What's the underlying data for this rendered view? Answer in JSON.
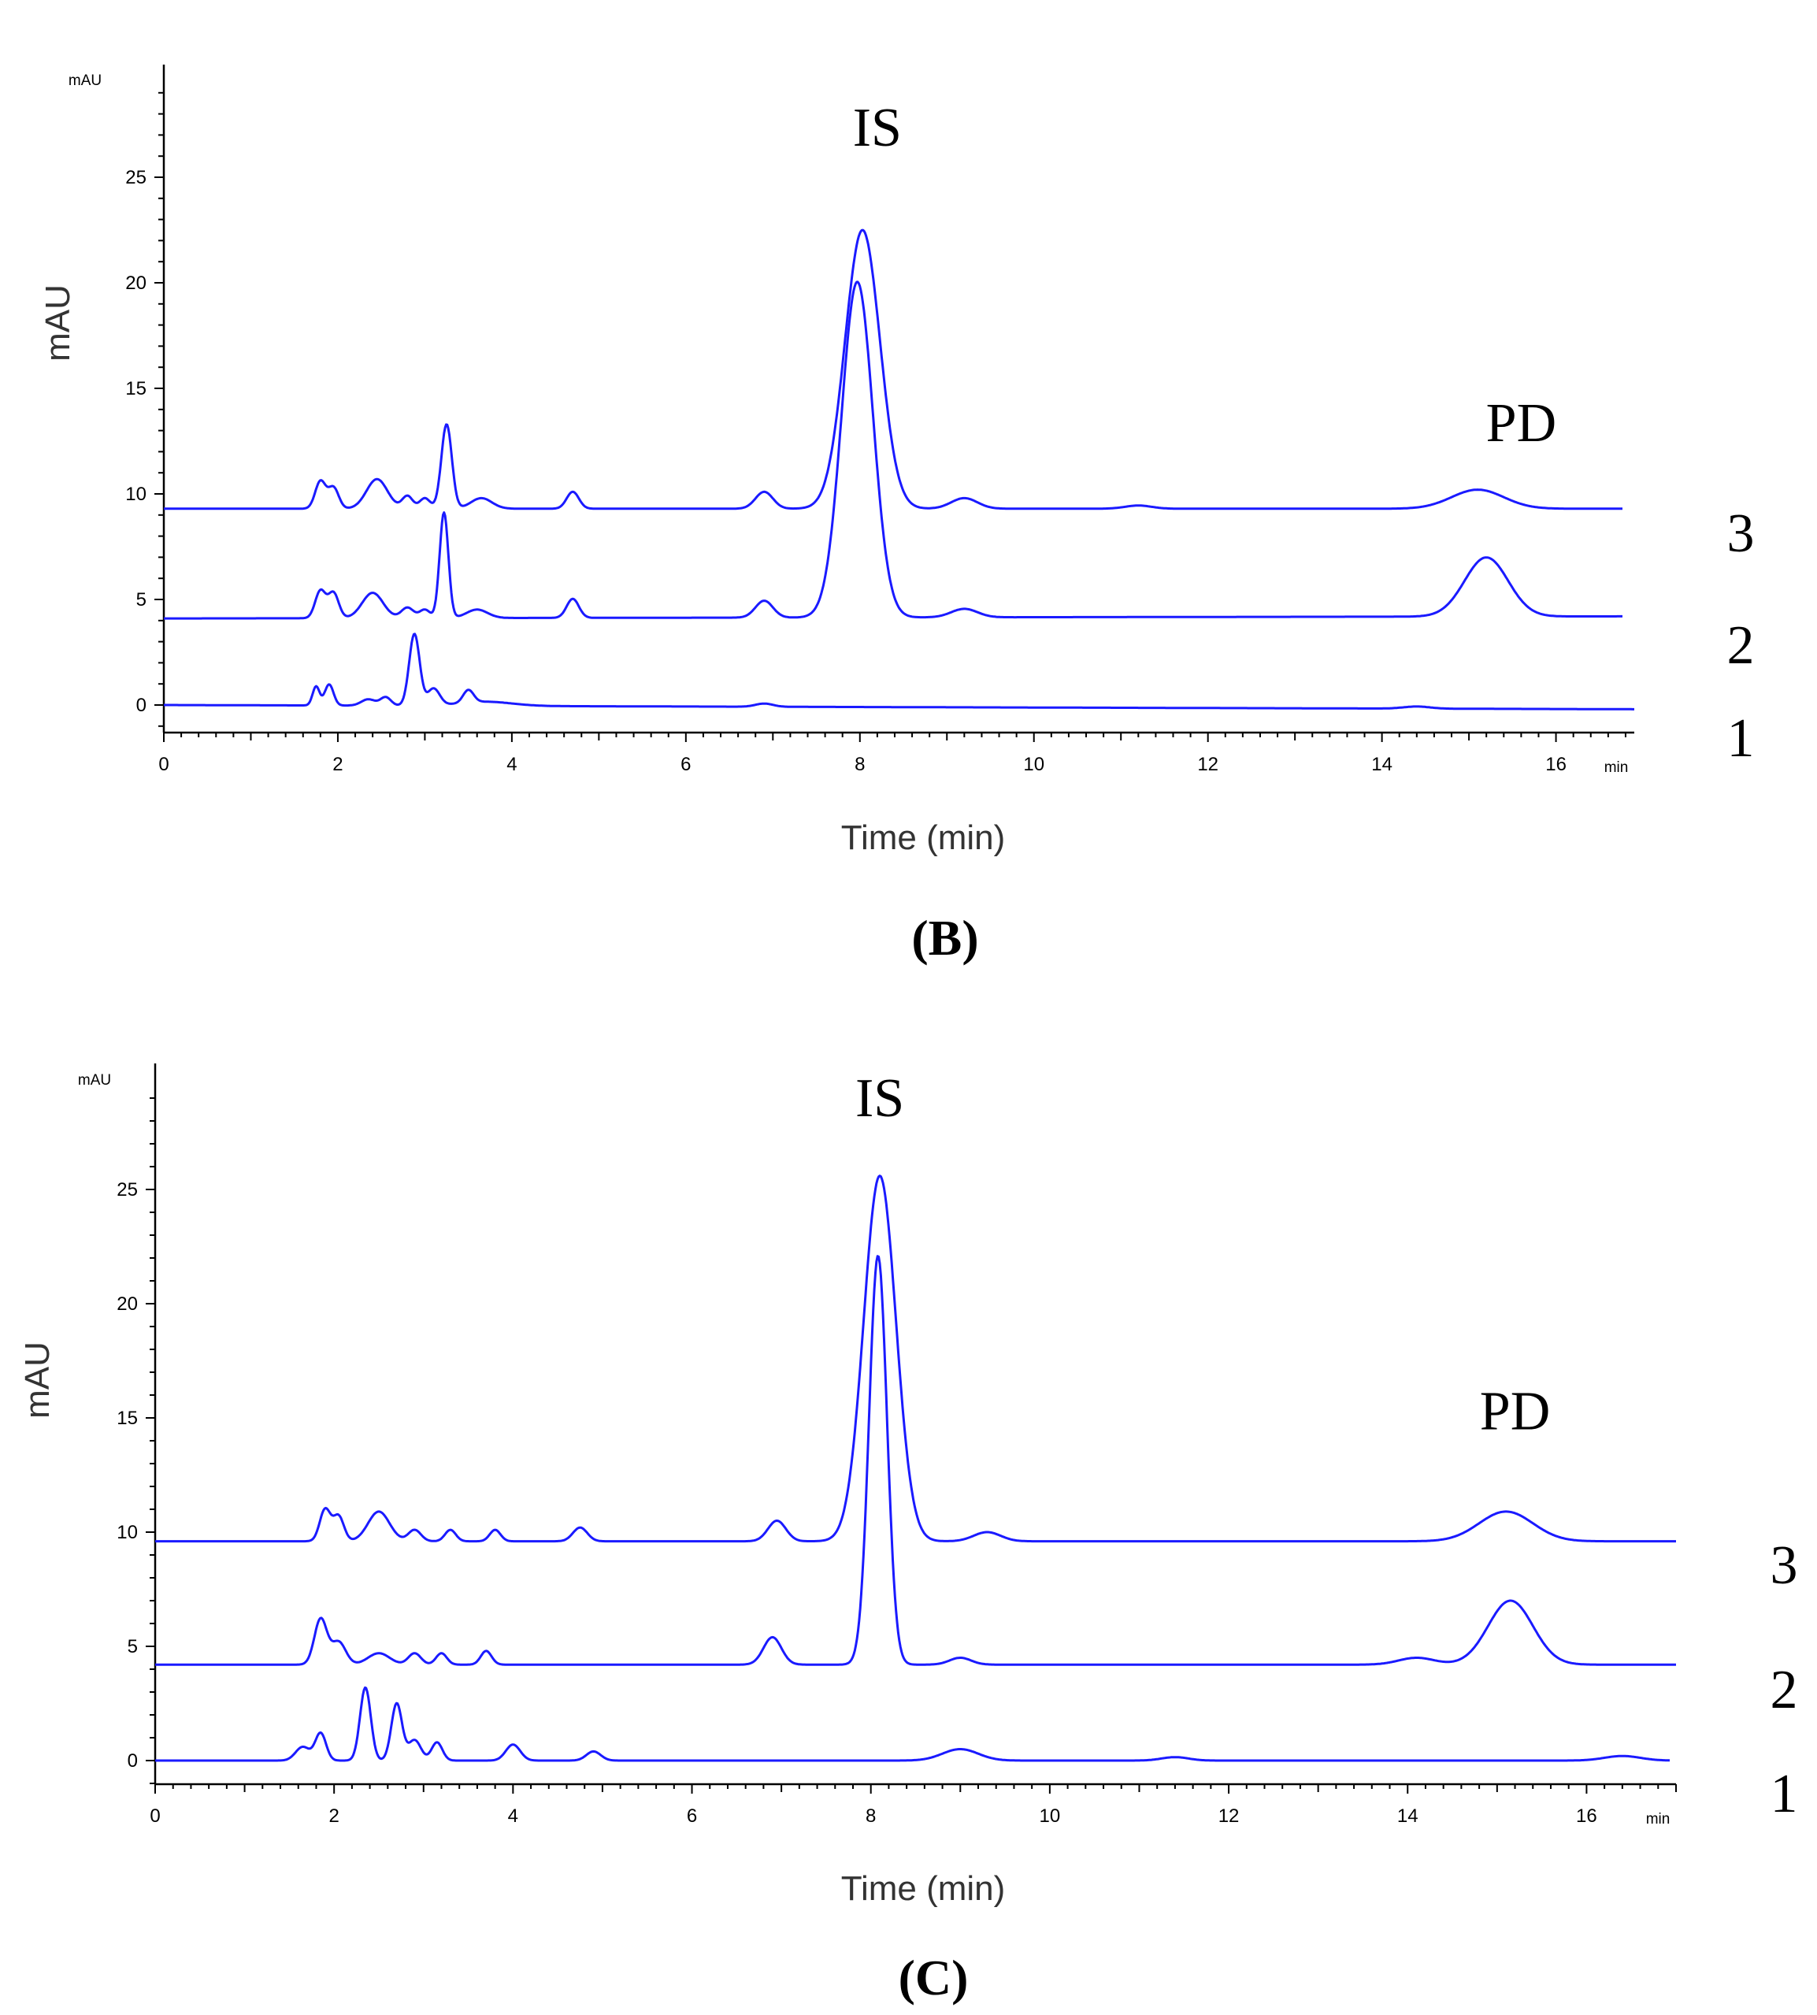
{
  "chart_data": [
    {
      "type": "line",
      "panel_label": "(B)",
      "title": "",
      "xlabel": "Time (min)",
      "ylabel": "mAU",
      "y_unit_label": "mAU",
      "x_unit_label": "min",
      "xlim": [
        0,
        16.9
      ],
      "ylim": [
        -1,
        30
      ],
      "x_ticks": [
        "0",
        "2",
        "4",
        "6",
        "8",
        "10",
        "12",
        "14",
        "16"
      ],
      "y_ticks": [
        "0",
        "5",
        "10",
        "15",
        "20",
        "25"
      ],
      "grid": false,
      "annotations": [
        {
          "text": "IS",
          "x": 8.2,
          "y": 26.5
        },
        {
          "text": "PD",
          "x": 15.6,
          "y": 12.5
        }
      ],
      "series": [
        {
          "name": "1",
          "baseline": 0.0,
          "end_baseline": -0.2,
          "peaks": [
            [
              1.75,
              0.9,
              0.04
            ],
            [
              1.9,
              1.0,
              0.05
            ],
            [
              2.35,
              0.3,
              0.08
            ],
            [
              2.55,
              0.4,
              0.06
            ],
            [
              2.88,
              3.4,
              0.06
            ],
            [
              3.1,
              0.8,
              0.07
            ],
            [
              3.5,
              0.6,
              0.06
            ],
            [
              3.7,
              0.2,
              0.3
            ],
            [
              6.9,
              0.15,
              0.1
            ],
            [
              14.4,
              0.1,
              0.15
            ]
          ]
        },
        {
          "name": "2",
          "baseline": 4.1,
          "end_baseline": 4.2,
          "peaks": [
            [
              1.8,
              1.3,
              0.06
            ],
            [
              1.95,
              1.2,
              0.06
            ],
            [
              2.4,
              1.2,
              0.12
            ],
            [
              2.8,
              0.5,
              0.07
            ],
            [
              3.0,
              0.4,
              0.06
            ],
            [
              3.22,
              5.0,
              0.05
            ],
            [
              3.6,
              0.4,
              0.12
            ],
            [
              4.7,
              0.9,
              0.07
            ],
            [
              6.9,
              0.8,
              0.1
            ],
            [
              7.97,
              15.9,
              0.18
            ],
            [
              9.2,
              0.4,
              0.15
            ],
            [
              15.2,
              2.8,
              0.25
            ]
          ]
        },
        {
          "name": "3",
          "baseline": 9.3,
          "end_baseline": 9.3,
          "peaks": [
            [
              1.8,
              1.3,
              0.06
            ],
            [
              1.95,
              1.0,
              0.06
            ],
            [
              2.45,
              1.4,
              0.12
            ],
            [
              2.8,
              0.6,
              0.06
            ],
            [
              3.0,
              0.5,
              0.06
            ],
            [
              3.25,
              4.0,
              0.06
            ],
            [
              3.65,
              0.5,
              0.12
            ],
            [
              4.7,
              0.8,
              0.07
            ],
            [
              6.9,
              0.8,
              0.1
            ],
            [
              8.03,
              13.2,
              0.2
            ],
            [
              9.2,
              0.5,
              0.15
            ],
            [
              11.2,
              0.15,
              0.15
            ],
            [
              15.1,
              0.9,
              0.3
            ]
          ]
        }
      ]
    },
    {
      "type": "line",
      "panel_label": "(C)",
      "title": "",
      "xlabel": "Time (min)",
      "ylabel": "mAU",
      "y_unit_label": "mAU",
      "x_unit_label": "min",
      "xlim": [
        0,
        17
      ],
      "ylim": [
        -1,
        30
      ],
      "x_ticks": [
        "0",
        "2",
        "4",
        "6",
        "8",
        "10",
        "12",
        "14",
        "16"
      ],
      "y_ticks": [
        "0",
        "5",
        "10",
        "15",
        "20",
        "25"
      ],
      "grid": false,
      "annotations": [
        {
          "text": "IS",
          "x": 8.1,
          "y": 28.2
        },
        {
          "text": "PD",
          "x": 15.2,
          "y": 14.5
        }
      ],
      "series": [
        {
          "name": "1",
          "baseline": 0.0,
          "end_baseline": 0.0,
          "peaks": [
            [
              1.65,
              0.6,
              0.08
            ],
            [
              1.85,
              1.2,
              0.06
            ],
            [
              2.35,
              3.2,
              0.06
            ],
            [
              2.7,
              2.5,
              0.06
            ],
            [
              2.9,
              0.9,
              0.07
            ],
            [
              3.15,
              0.8,
              0.06
            ],
            [
              4.0,
              0.7,
              0.08
            ],
            [
              4.9,
              0.4,
              0.08
            ],
            [
              9.0,
              0.5,
              0.2
            ],
            [
              11.4,
              0.15,
              0.15
            ],
            [
              16.4,
              0.2,
              0.2
            ]
          ]
        },
        {
          "name": "2",
          "baseline": 4.2,
          "end_baseline": 4.2,
          "peaks": [
            [
              1.85,
              2.0,
              0.07
            ],
            [
              2.05,
              1.0,
              0.08
            ],
            [
              2.5,
              0.5,
              0.12
            ],
            [
              2.9,
              0.5,
              0.07
            ],
            [
              3.2,
              0.5,
              0.06
            ],
            [
              3.7,
              0.6,
              0.06
            ],
            [
              6.9,
              1.2,
              0.1
            ],
            [
              8.08,
              17.9,
              0.1
            ],
            [
              9.0,
              0.3,
              0.12
            ],
            [
              14.1,
              0.3,
              0.2
            ],
            [
              15.15,
              2.8,
              0.25
            ]
          ]
        },
        {
          "name": "3",
          "baseline": 9.6,
          "end_baseline": 9.6,
          "peaks": [
            [
              1.9,
              1.4,
              0.06
            ],
            [
              2.05,
              1.1,
              0.06
            ],
            [
              2.5,
              1.3,
              0.12
            ],
            [
              2.9,
              0.5,
              0.07
            ],
            [
              3.3,
              0.5,
              0.06
            ],
            [
              3.8,
              0.5,
              0.06
            ],
            [
              4.75,
              0.6,
              0.08
            ],
            [
              6.95,
              0.9,
              0.1
            ],
            [
              8.1,
              16.0,
              0.18
            ],
            [
              9.3,
              0.4,
              0.15
            ],
            [
              15.1,
              1.3,
              0.3
            ]
          ]
        }
      ]
    }
  ]
}
